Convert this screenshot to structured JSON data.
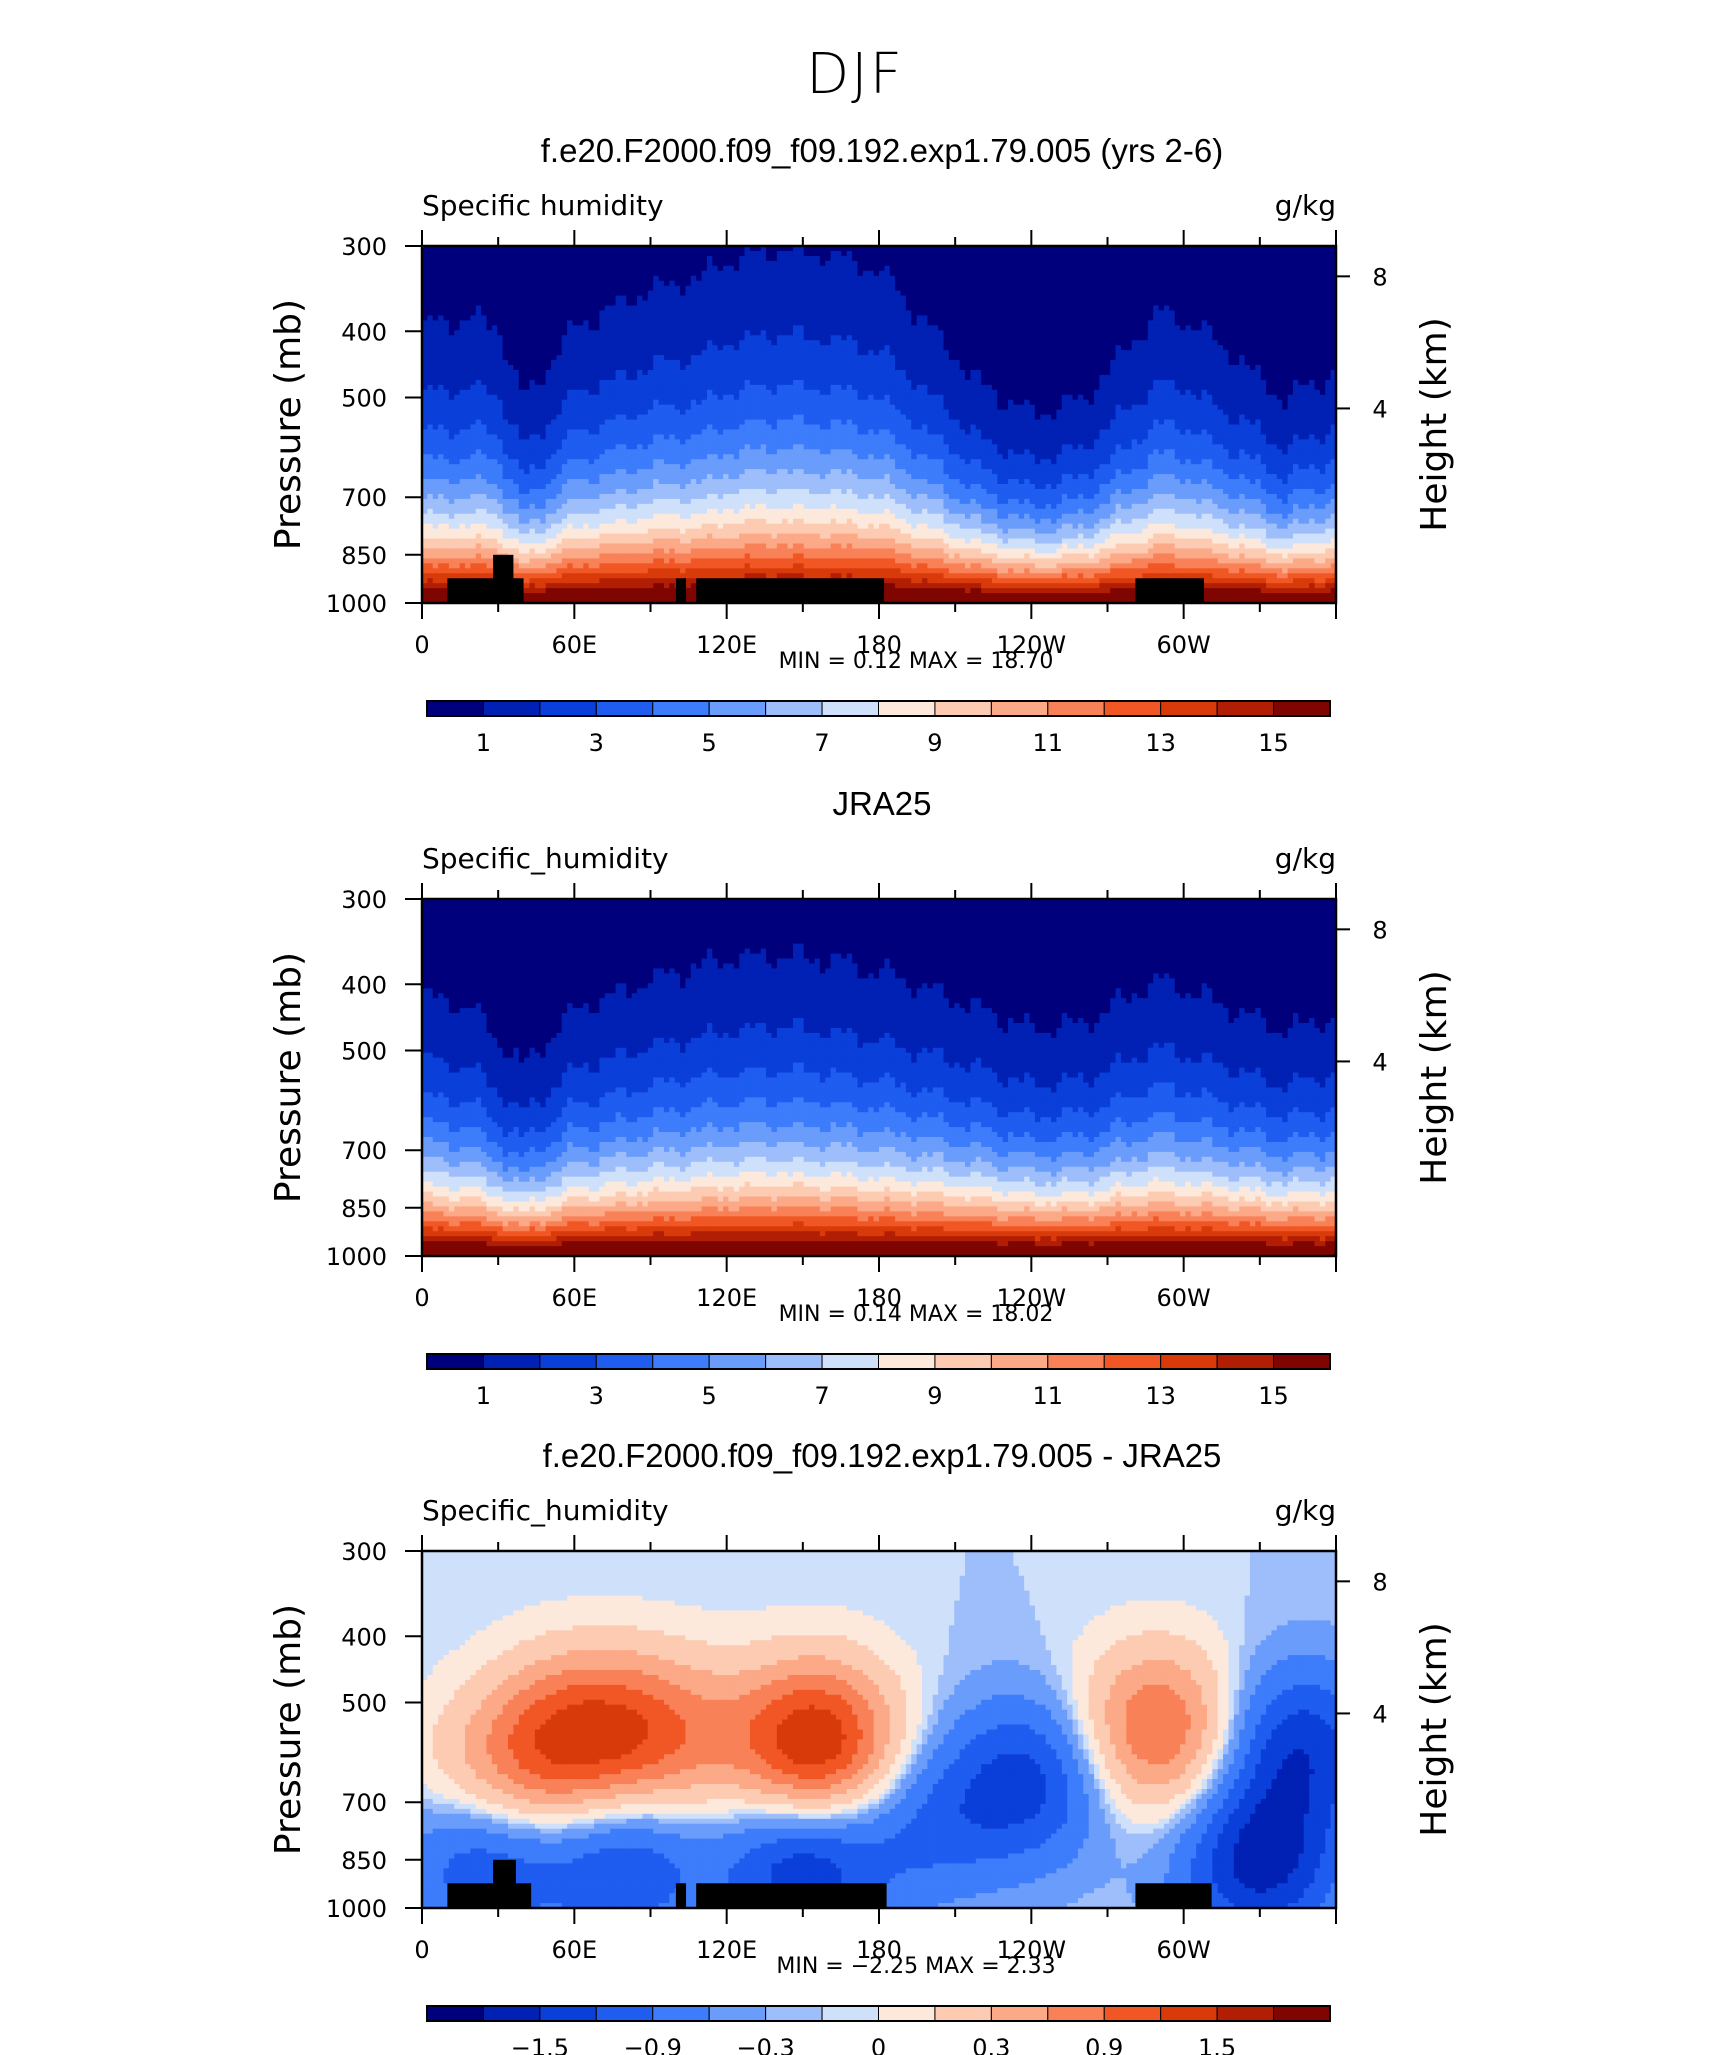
{
  "figure_title": "DJF",
  "colors": {
    "palette": [
      "#00007d",
      "#0021b3",
      "#0a3fd9",
      "#1f5cf0",
      "#3d7cfa",
      "#6a9cfb",
      "#9dbefa",
      "#cfe0fb",
      "#fde9dc",
      "#fdcbb2",
      "#fca988",
      "#f98158",
      "#f15724",
      "#d93a0a",
      "#b21e04",
      "#7f0600"
    ]
  },
  "panels": [
    {
      "id": "model",
      "title": "f.e20.F2000.f09_f09.192.exp1.79.005 (yrs 2-6)",
      "variable_label": "Specific humidity",
      "units_label": "g/kg",
      "y_axis_label": "Pressure (mb)",
      "y2_axis_label": "Height (km)",
      "min_max_text": "MIN =    0.12   MAX =    18.70",
      "colorbar_labels": [
        "1",
        "3",
        "5",
        "7",
        "9",
        "11",
        "13",
        "15"
      ],
      "show_topography": true
    },
    {
      "id": "obs",
      "title": "JRA25",
      "variable_label": "Specific_humidity",
      "units_label": "g/kg",
      "y_axis_label": "Pressure (mb)",
      "y2_axis_label": "Height (km)",
      "min_max_text": "MIN =    0.14   MAX =    18.02",
      "colorbar_labels": [
        "1",
        "3",
        "5",
        "7",
        "9",
        "11",
        "13",
        "15"
      ],
      "show_topography": false
    },
    {
      "id": "diff",
      "title": "f.e20.F2000.f09_f09.192.exp1.79.005 - JRA25",
      "variable_label": "Specific_humidity",
      "units_label": "g/kg",
      "y_axis_label": "Pressure (mb)",
      "y2_axis_label": "Height (km)",
      "min_max_text": "MIN =   −2.25   MAX =    2.33",
      "colorbar_labels": [
        "−1.5",
        "−0.9",
        "−0.3",
        "0",
        "0.3",
        "0.9",
        "1.5"
      ],
      "show_topography": true
    }
  ],
  "chart_data": [
    {
      "type": "heatmap",
      "title": "f.e20.F2000.f09_f09.192.exp1.79.005 (yrs 2-6)",
      "variable": "Specific humidity",
      "units": "g/kg",
      "ylabel": "Pressure (mb)",
      "y2label": "Height (km)",
      "x_ticks": [
        "0",
        "60E",
        "120E",
        "180",
        "120W",
        "60W"
      ],
      "x_tick_values": [
        0,
        60,
        120,
        180,
        240,
        300
      ],
      "xlim": [
        0,
        360
      ],
      "y_ticks": [
        "300",
        "400",
        "500",
        "700",
        "850",
        "1000"
      ],
      "y_tick_values": [
        300,
        400,
        500,
        700,
        850,
        1000
      ],
      "ylim": [
        1000,
        300
      ],
      "y_scale": "log",
      "y2_ticks": [
        "8",
        "4"
      ],
      "contour_levels": [
        0,
        1,
        2,
        3,
        4,
        5,
        6,
        7,
        8,
        9,
        10,
        11,
        12,
        13,
        14,
        15
      ],
      "colorbar_ticks": [
        "1",
        "3",
        "5",
        "7",
        "9",
        "11",
        "13",
        "15"
      ],
      "min": 0.12,
      "max": 18.7,
      "mid_level_x": [
        0,
        20,
        30,
        40,
        60,
        90,
        100,
        110,
        120,
        140,
        160,
        180,
        200,
        220,
        240,
        260,
        280,
        290,
        300,
        320,
        340,
        360
      ],
      "mid_level_height_profile": [
        0.55,
        0.58,
        0.55,
        0.3,
        0.55,
        0.68,
        0.7,
        0.72,
        0.78,
        0.82,
        0.8,
        0.75,
        0.55,
        0.35,
        0.25,
        0.3,
        0.5,
        0.6,
        0.58,
        0.45,
        0.3,
        0.4
      ],
      "topography_blocks": [
        [
          10,
          40,
          920
        ],
        [
          28,
          36,
          850
        ],
        [
          100,
          104,
          920
        ],
        [
          108,
          182,
          920
        ],
        [
          281,
          308,
          920
        ]
      ]
    },
    {
      "type": "heatmap",
      "title": "JRA25",
      "variable": "Specific_humidity",
      "units": "g/kg",
      "ylabel": "Pressure (mb)",
      "y2label": "Height (km)",
      "x_ticks": [
        "0",
        "60E",
        "120E",
        "180",
        "120W",
        "60W"
      ],
      "x_tick_values": [
        0,
        60,
        120,
        180,
        240,
        300
      ],
      "xlim": [
        0,
        360
      ],
      "y_ticks": [
        "300",
        "400",
        "500",
        "700",
        "850",
        "1000"
      ],
      "y_tick_values": [
        300,
        400,
        500,
        700,
        850,
        1000
      ],
      "ylim": [
        1000,
        300
      ],
      "y_scale": "log",
      "y2_ticks": [
        "8",
        "4"
      ],
      "contour_levels": [
        0,
        1,
        2,
        3,
        4,
        5,
        6,
        7,
        8,
        9,
        10,
        11,
        12,
        13,
        14,
        15
      ],
      "colorbar_ticks": [
        "1",
        "3",
        "5",
        "7",
        "9",
        "11",
        "13",
        "15"
      ],
      "min": 0.14,
      "max": 18.02,
      "mid_level_x": [
        0,
        20,
        30,
        40,
        60,
        90,
        120,
        140,
        160,
        180,
        200,
        220,
        240,
        260,
        280,
        290,
        300,
        320,
        340,
        360
      ],
      "mid_level_height_profile": [
        0.5,
        0.45,
        0.35,
        0.25,
        0.45,
        0.55,
        0.62,
        0.64,
        0.62,
        0.58,
        0.52,
        0.45,
        0.38,
        0.4,
        0.5,
        0.55,
        0.52,
        0.45,
        0.38,
        0.42
      ],
      "topography_blocks": []
    },
    {
      "type": "heatmap",
      "title": "f.e20.F2000.f09_f09.192.exp1.79.005 - JRA25",
      "variable": "Specific_humidity",
      "units": "g/kg",
      "ylabel": "Pressure (mb)",
      "y2label": "Height (km)",
      "x_ticks": [
        "0",
        "60E",
        "120E",
        "180",
        "120W",
        "60W"
      ],
      "x_tick_values": [
        0,
        60,
        120,
        180,
        240,
        300
      ],
      "xlim": [
        0,
        360
      ],
      "y_ticks": [
        "300",
        "400",
        "500",
        "700",
        "850",
        "1000"
      ],
      "y_tick_values": [
        300,
        400,
        500,
        700,
        850,
        1000
      ],
      "ylim": [
        1000,
        300
      ],
      "y_scale": "log",
      "y2_ticks": [
        "8",
        "4"
      ],
      "contour_levels": [
        -1.8,
        -1.5,
        -1.2,
        -0.9,
        -0.6,
        -0.3,
        -0.1,
        0,
        0.1,
        0.3,
        0.6,
        0.9,
        1.2,
        1.5,
        1.8
      ],
      "colorbar_ticks": [
        "−1.5",
        "−0.9",
        "−0.3",
        "0",
        "0.3",
        "0.9",
        "1.5"
      ],
      "min": -2.25,
      "max": 2.33,
      "anomaly_centers": [
        {
          "x": 155,
          "p": 580,
          "value": 1.9
        },
        {
          "x": 60,
          "p": 560,
          "value": 1.3
        },
        {
          "x": 95,
          "p": 560,
          "value": 1.0
        },
        {
          "x": 290,
          "p": 550,
          "value": 1.3
        },
        {
          "x": 30,
          "p": 650,
          "value": 0.8
        },
        {
          "x": 240,
          "p": 650,
          "value": -1.0
        },
        {
          "x": 345,
          "p": 580,
          "value": -1.1
        },
        {
          "x": 330,
          "p": 860,
          "value": -1.3
        },
        {
          "x": 80,
          "p": 860,
          "value": -0.9
        },
        {
          "x": 150,
          "p": 860,
          "value": -1.2
        },
        {
          "x": 25,
          "p": 840,
          "value": -1.0
        },
        {
          "x": 200,
          "p": 750,
          "value": -0.6
        }
      ],
      "topography_blocks": [
        [
          10,
          43,
          920
        ],
        [
          28,
          37,
          850
        ],
        [
          100,
          104,
          920
        ],
        [
          108,
          183,
          920
        ],
        [
          281,
          311,
          920
        ]
      ]
    }
  ]
}
